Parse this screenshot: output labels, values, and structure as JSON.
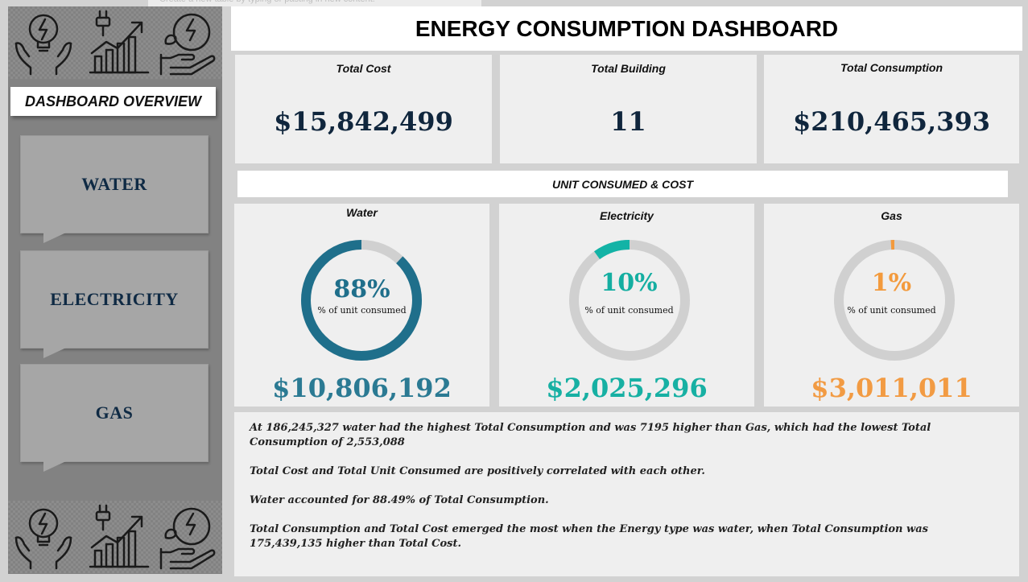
{
  "ghost_tip": "Create a new table by typing or pasting in new content.",
  "title": "ENERGY CONSUMPTION DASHBOARD",
  "sidebar": {
    "overview_label": "DASHBOARD OVERVIEW",
    "nav": [
      {
        "label": "WATER"
      },
      {
        "label": "ELECTRICITY"
      },
      {
        "label": "GAS"
      }
    ],
    "icons": [
      "hands-lightbulb-icon",
      "plug-growth-chart-icon",
      "hand-eco-energy-icon"
    ]
  },
  "kpis": [
    {
      "label": "Total Cost",
      "value": "$15,842,499"
    },
    {
      "label": "Total Building",
      "value": "11"
    },
    {
      "label": "Total Consumption",
      "value": "$210,465,393"
    }
  ],
  "section_title": "UNIT CONSUMED & COST",
  "cards": [
    {
      "label": "Water",
      "percent": 88,
      "percent_text": "88%",
      "sub": "% of unit consumed",
      "cost": "$10,806,192",
      "color": "#1f6f8b",
      "percent_color": "#1f6f8b",
      "cost_color": "#2b7a93"
    },
    {
      "label": "Electricity",
      "percent": 10,
      "percent_text": "10%",
      "sub": "% of unit consumed",
      "cost": "$2,025,296",
      "color": "#13b3a6",
      "percent_color": "#14aea1",
      "cost_color": "#17b0a3"
    },
    {
      "label": "Gas",
      "percent": 1,
      "percent_text": "1%",
      "sub": "% of unit consumed",
      "cost": "$3,011,011",
      "color": "#f39a3c",
      "percent_color": "#f39a3c",
      "cost_color": "#f29b43"
    }
  ],
  "ring_track_color": "#d0d0d0",
  "insights": [
    "At 186,245,327 water had the highest Total Consumption and was 7195 higher than Gas, which had the lowest Total Consumption of 2,553,088",
    "Total Cost and Total Unit Consumed are positively correlated with each other.",
    "Water accounted for 88.49% of Total Consumption.",
    "Total Consumption and Total Cost emerged the most when the Energy type was water, when Total Consumption was 175,439,135 higher than Total Cost."
  ]
}
